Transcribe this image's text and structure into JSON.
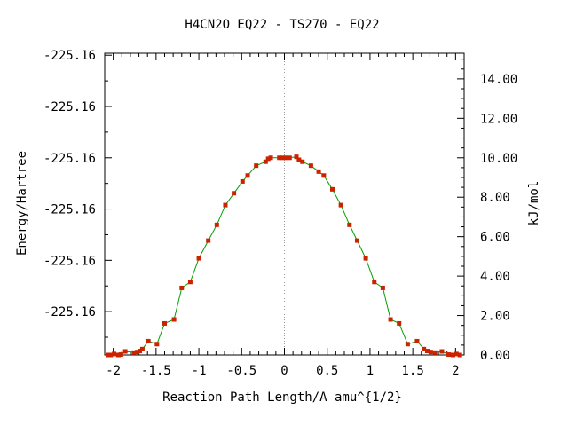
{
  "chart_data": {
    "type": "line",
    "title": "H4CN2O   EQ22 - TS270 - EQ22",
    "xlabel": "Reaction Path Length/A amu^{1/2}",
    "ylabel_left": "Energy/Hartree",
    "ylabel_right": "kJ/mol",
    "xlim": [
      -2.1,
      2.1
    ],
    "ylim_right": [
      0,
      15.3
    ],
    "x_ticks": [
      -2,
      -1.5,
      -1,
      -0.5,
      0,
      0.5,
      1,
      1.5,
      2
    ],
    "x_tick_labels": [
      "-2",
      "-1.5",
      "-1",
      "-0.5",
      "0",
      "0.5",
      "1",
      "1.5",
      "2"
    ],
    "left_tick_values_kj": [
      2.2,
      4.8,
      7.4,
      10.0,
      12.6,
      15.2
    ],
    "left_tick_labels": [
      "-225.16",
      "-225.16",
      "-225.16",
      "-225.16",
      "-225.16",
      "-225.16"
    ],
    "right_ticks": [
      0,
      2,
      4,
      6,
      8,
      10,
      12,
      14
    ],
    "right_tick_labels": [
      "0.00",
      "2.00",
      "4.00",
      "6.00",
      "8.00",
      "10.00",
      "12.00",
      "14.00"
    ],
    "ts_marker_x": 0,
    "line_color": "#00a000",
    "point_color": "#cc2200",
    "x": [
      -2.06,
      -2.03,
      -1.99,
      -1.94,
      -1.91,
      -1.86,
      -1.76,
      -1.72,
      -1.69,
      -1.66,
      -1.59,
      -1.49,
      -1.4,
      -1.29,
      -1.2,
      -1.1,
      -1.0,
      -0.89,
      -0.79,
      -0.69,
      -0.59,
      -0.49,
      -0.43,
      -0.33,
      -0.22,
      -0.19,
      -0.16,
      -0.06,
      -0.02,
      0.02,
      0.06,
      0.14,
      0.17,
      0.21,
      0.31,
      0.4,
      0.46,
      0.56,
      0.66,
      0.76,
      0.85,
      0.95,
      1.05,
      1.15,
      1.24,
      1.34,
      1.44,
      1.55,
      1.63,
      1.67,
      1.71,
      1.76,
      1.84,
      1.92,
      1.97,
      2.01,
      2.05
    ],
    "y": [
      0.0,
      0.0,
      0.05,
      0.0,
      0.02,
      0.18,
      0.12,
      0.15,
      0.2,
      0.3,
      0.7,
      0.55,
      1.6,
      1.8,
      3.4,
      3.7,
      4.9,
      5.8,
      6.6,
      7.6,
      8.2,
      8.8,
      9.1,
      9.6,
      9.8,
      9.95,
      10.0,
      10.0,
      10.0,
      10.0,
      10.0,
      10.05,
      9.9,
      9.8,
      9.6,
      9.3,
      9.1,
      8.4,
      7.6,
      6.6,
      5.8,
      4.9,
      3.7,
      3.4,
      1.8,
      1.6,
      0.55,
      0.7,
      0.3,
      0.2,
      0.15,
      0.12,
      0.18,
      0.02,
      0.0,
      0.05,
      0.0
    ]
  }
}
